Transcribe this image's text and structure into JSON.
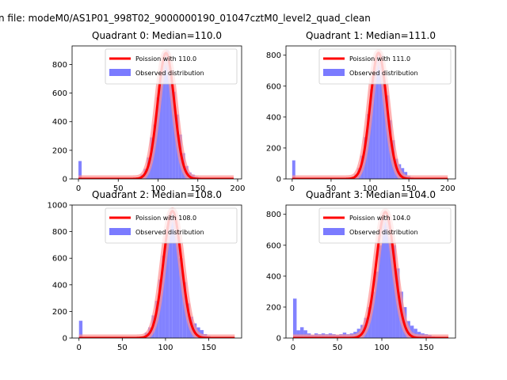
{
  "figure_title": "n file: modeM0/AS1P01_998T02_9000000190_01047cztM0_level2_quad_clean",
  "chart_data": [
    {
      "type": "histogram",
      "title": "Quadrant 0: Median=110.0",
      "median": 110.0,
      "xlim": [
        -8,
        205
      ],
      "ylim": [
        0,
        930
      ],
      "xticks": [
        0,
        50,
        100,
        150,
        200
      ],
      "yticks": [
        0,
        200,
        400,
        600,
        800
      ],
      "legend": {
        "fit_label": "Poission with 110.0",
        "hist_label": "Observed distribution",
        "position": "top-right"
      },
      "bins": [
        [
          0,
          125
        ],
        [
          70,
          5
        ],
        [
          74,
          10
        ],
        [
          78,
          30
        ],
        [
          82,
          70
        ],
        [
          86,
          150
        ],
        [
          90,
          290
        ],
        [
          94,
          380
        ],
        [
          98,
          570
        ],
        [
          102,
          760
        ],
        [
          106,
          880
        ],
        [
          110,
          900
        ],
        [
          114,
          750
        ],
        [
          118,
          610
        ],
        [
          122,
          450
        ],
        [
          126,
          310
        ],
        [
          130,
          180
        ],
        [
          134,
          90
        ],
        [
          138,
          45
        ],
        [
          142,
          30
        ],
        [
          146,
          15
        ],
        [
          150,
          10
        ],
        [
          154,
          6
        ],
        [
          158,
          4
        ],
        [
          162,
          3
        ],
        [
          166,
          2
        ],
        [
          170,
          2
        ],
        [
          174,
          1
        ]
      ],
      "bin_width": 4,
      "lambda": 110,
      "peak": 880,
      "fit_range": [
        0,
        195
      ]
    },
    {
      "type": "histogram",
      "title": "Quadrant 1: Median=111.0",
      "median": 111.0,
      "xlim": [
        -8,
        210
      ],
      "ylim": [
        0,
        860
      ],
      "xticks": [
        0,
        50,
        100,
        150,
        200
      ],
      "yticks": [
        0,
        200,
        400,
        600,
        800
      ],
      "legend": {
        "fit_label": "Poission with 111.0",
        "hist_label": "Observed distribution",
        "position": "top-right"
      },
      "bins": [
        [
          0,
          120
        ],
        [
          72,
          5
        ],
        [
          76,
          10
        ],
        [
          80,
          30
        ],
        [
          84,
          70
        ],
        [
          88,
          150
        ],
        [
          92,
          270
        ],
        [
          96,
          420
        ],
        [
          100,
          580
        ],
        [
          104,
          720
        ],
        [
          108,
          800
        ],
        [
          112,
          800
        ],
        [
          116,
          700
        ],
        [
          120,
          540
        ],
        [
          124,
          380
        ],
        [
          128,
          250
        ],
        [
          132,
          130
        ],
        [
          136,
          95
        ],
        [
          140,
          70
        ],
        [
          144,
          45
        ],
        [
          148,
          20
        ],
        [
          152,
          10
        ],
        [
          156,
          6
        ],
        [
          160,
          4
        ],
        [
          164,
          3
        ],
        [
          168,
          2
        ],
        [
          172,
          2
        ],
        [
          176,
          1
        ]
      ],
      "bin_width": 4,
      "lambda": 111,
      "peak": 815,
      "fit_range": [
        0,
        200
      ]
    },
    {
      "type": "histogram",
      "title": "Quadrant 2: Median=108.0",
      "median": 108.0,
      "xlim": [
        -8,
        188
      ],
      "ylim": [
        0,
        1000
      ],
      "xticks": [
        0,
        50,
        100,
        150
      ],
      "yticks": [
        0,
        200,
        400,
        600,
        800,
        1000
      ],
      "legend": {
        "fit_label": "Poission with 108.0",
        "hist_label": "Observed distribution",
        "position": "top-right"
      },
      "bins": [
        [
          0,
          130
        ],
        [
          68,
          5
        ],
        [
          72,
          12
        ],
        [
          76,
          40
        ],
        [
          80,
          80
        ],
        [
          84,
          170
        ],
        [
          88,
          280
        ],
        [
          92,
          440
        ],
        [
          96,
          620
        ],
        [
          100,
          820
        ],
        [
          104,
          940
        ],
        [
          108,
          920
        ],
        [
          112,
          780
        ],
        [
          116,
          600
        ],
        [
          120,
          420
        ],
        [
          124,
          260
        ],
        [
          128,
          160
        ],
        [
          132,
          110
        ],
        [
          136,
          80
        ],
        [
          140,
          60
        ],
        [
          144,
          30
        ],
        [
          148,
          15
        ],
        [
          152,
          8
        ],
        [
          156,
          5
        ],
        [
          160,
          3
        ],
        [
          164,
          2
        ],
        [
          168,
          1
        ]
      ],
      "bin_width": 4,
      "lambda": 108,
      "peak": 955,
      "fit_range": [
        0,
        180
      ]
    },
    {
      "type": "histogram",
      "title": "Quadrant 3: Median=104.0",
      "median": 104.0,
      "xlim": [
        -8,
        183
      ],
      "ylim": [
        0,
        860
      ],
      "xticks": [
        0,
        50,
        100,
        150
      ],
      "yticks": [
        0,
        200,
        400,
        600,
        800
      ],
      "legend": {
        "fit_label": "Poission with 104.0",
        "hist_label": "Observed distribution",
        "position": "top-right"
      },
      "bins": [
        [
          0,
          255
        ],
        [
          4,
          50
        ],
        [
          8,
          70
        ],
        [
          12,
          50
        ],
        [
          16,
          30
        ],
        [
          20,
          20
        ],
        [
          24,
          30
        ],
        [
          28,
          25
        ],
        [
          32,
          30
        ],
        [
          36,
          25
        ],
        [
          40,
          30
        ],
        [
          44,
          25
        ],
        [
          48,
          20
        ],
        [
          52,
          25
        ],
        [
          56,
          35
        ],
        [
          60,
          25
        ],
        [
          64,
          30
        ],
        [
          68,
          40
        ],
        [
          72,
          60
        ],
        [
          76,
          85
        ],
        [
          80,
          130
        ],
        [
          84,
          200
        ],
        [
          88,
          300
        ],
        [
          92,
          430
        ],
        [
          96,
          600
        ],
        [
          100,
          780
        ],
        [
          104,
          760
        ],
        [
          108,
          650
        ],
        [
          112,
          600
        ],
        [
          116,
          450
        ],
        [
          120,
          300
        ],
        [
          124,
          200
        ],
        [
          128,
          110
        ],
        [
          132,
          80
        ],
        [
          136,
          60
        ],
        [
          140,
          40
        ],
        [
          144,
          30
        ],
        [
          148,
          25
        ],
        [
          152,
          20
        ],
        [
          156,
          10
        ],
        [
          160,
          8
        ],
        [
          164,
          5
        ],
        [
          168,
          3
        ],
        [
          172,
          2
        ]
      ],
      "bin_width": 4,
      "lambda": 104,
      "peak": 815,
      "fit_range": [
        0,
        175
      ]
    }
  ],
  "colors": {
    "hist": "#7b7bff",
    "fit": "#ff0000",
    "fit_glow": "#ff9090",
    "axis": "#000000"
  }
}
